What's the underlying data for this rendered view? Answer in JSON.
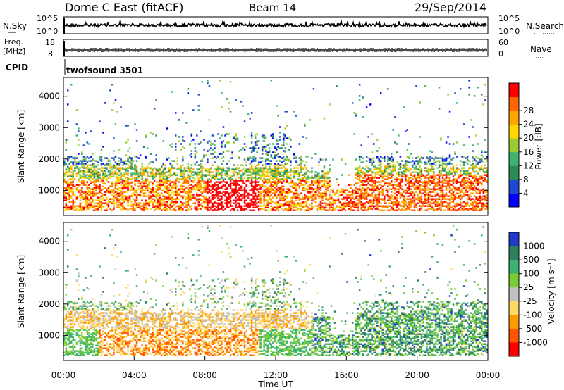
{
  "header": {
    "station": "Dome C East (fitACF)",
    "beam": "Beam 14",
    "date": "29/Sep/2014"
  },
  "panels": {
    "nsky_label": "N.Sky",
    "nsky_ticks": [
      "10^5",
      "10^0"
    ],
    "nsearch_label": "N.Search",
    "freq_label_1": "Freq.",
    "freq_label_2": "[MHz]",
    "freq_ticks": [
      "18",
      "8"
    ],
    "nave_label": "Nave",
    "nave_ticks": [
      "60",
      "0"
    ],
    "cpid_label": "CPID",
    "cpid_value": "twofsound 3501"
  },
  "chart_data": [
    {
      "type": "heatmap",
      "name": "power",
      "ylabel": "Slant Range [km]",
      "xlabel": "",
      "yticks": [
        "1000",
        "2000",
        "3000",
        "4000"
      ],
      "ylim": [
        200,
        4600
      ],
      "colorbar_label": "Power [dB]",
      "colorbar_ticks": [
        "4",
        "8",
        "12",
        "16",
        "20",
        "24",
        "28"
      ],
      "colorbar_colors": [
        "#0000ff",
        "#1c4ad0",
        "#2e8b57",
        "#3cb371",
        "#9acd32",
        "#ffd700",
        "#ffa500",
        "#ff6600",
        "#ff0000"
      ]
    },
    {
      "type": "heatmap",
      "name": "velocity",
      "ylabel": "Slant Range [km]",
      "xlabel": "Time UT",
      "yticks": [
        "1000",
        "2000",
        "3000",
        "4000"
      ],
      "ylim": [
        200,
        4600
      ],
      "xticks": [
        "00:00",
        "04:00",
        "08:00",
        "12:00",
        "16:00",
        "20:00",
        "00:00"
      ],
      "colorbar_label": "Velocity [m s⁻¹]",
      "colorbar_ticks": [
        "1000",
        "500",
        "100",
        "25",
        "-25",
        "-100",
        "-500",
        "-1000"
      ],
      "colorbar_colors": [
        "#1e3cc8",
        "#2f7f5f",
        "#3cb371",
        "#7ccd32",
        "#c0c0c0",
        "#ffd966",
        "#ff9900",
        "#ff5500",
        "#ff0000"
      ]
    }
  ]
}
